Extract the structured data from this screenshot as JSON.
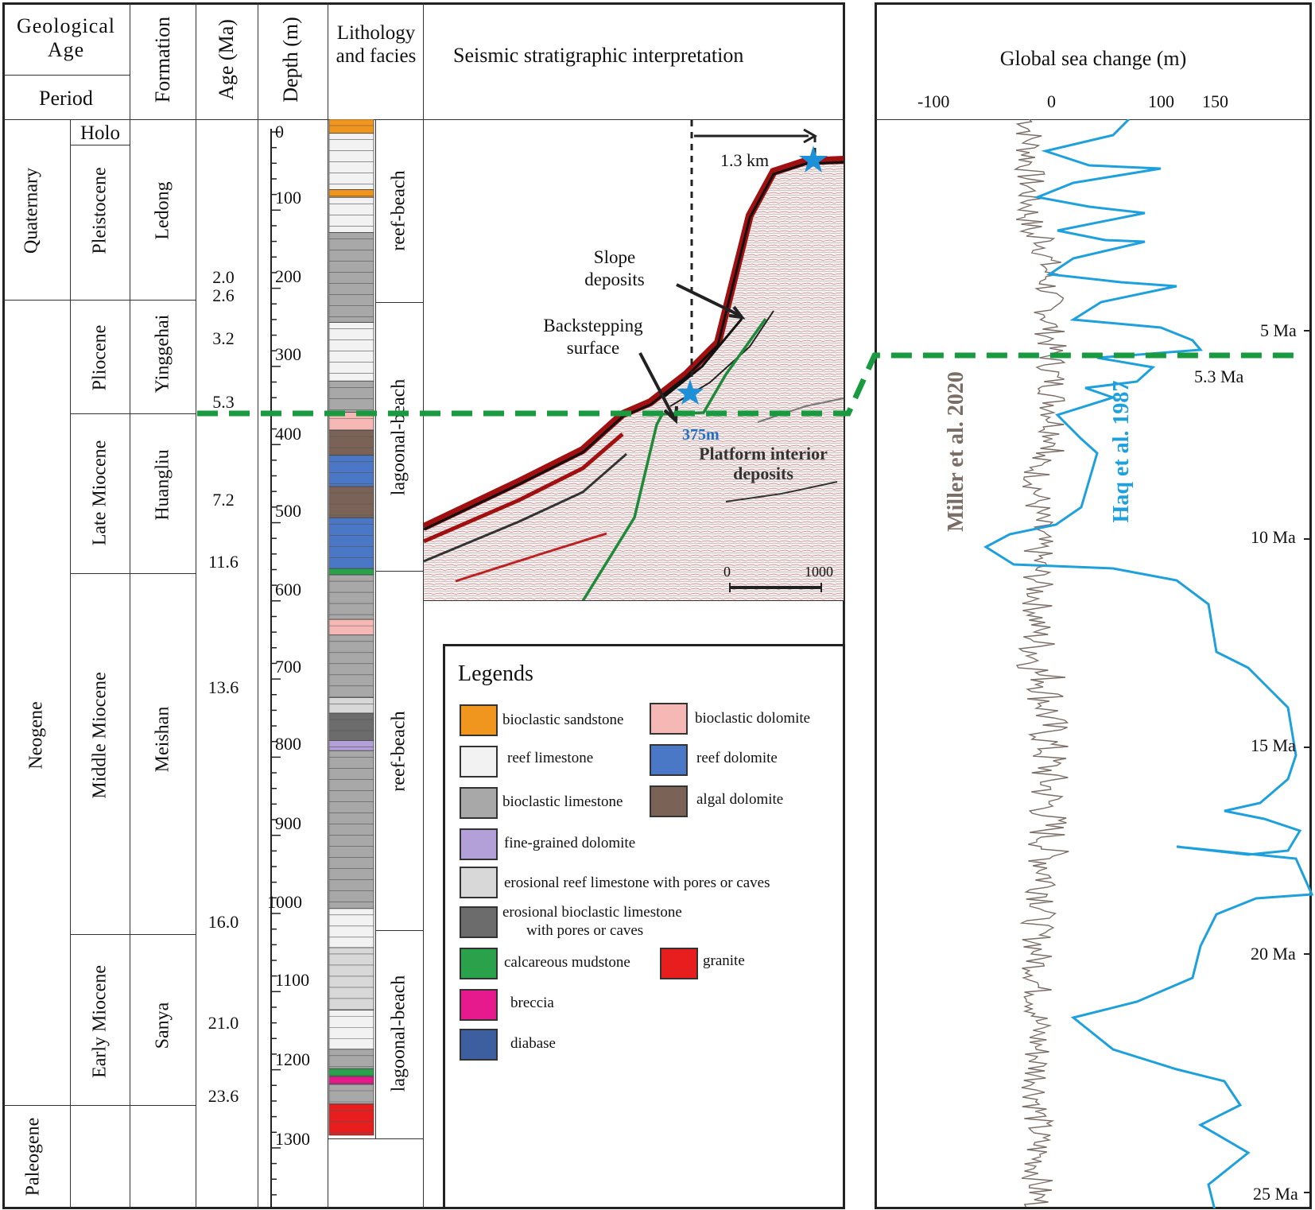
{
  "headers": {
    "geological_age": "Geological Age",
    "period": "Period",
    "formation": "Formation",
    "age_ma": "Age (Ma)",
    "depth_m": "Depth (m)",
    "lithology": "Lithology and facies",
    "seismic": "Seismic stratigraphic interpretation",
    "global_sea": "Global sea change (m)"
  },
  "periods": [
    "Quaternary",
    "Neogene",
    "Paleogene"
  ],
  "epochs": [
    "Holo",
    "Pleistocene",
    "Pliocene",
    "Late Miocene",
    "Middle Miocene",
    "Early Miocene"
  ],
  "formations": [
    "Ledong",
    "Yinggehai",
    "Huangliu",
    "Meishan",
    "Sanya"
  ],
  "ages": [
    "2.0",
    "2.6",
    "3.2",
    "5.3",
    "7.2",
    "11.6",
    "13.6",
    "16.0",
    "21.0",
    "23.6"
  ],
  "depths": [
    "0",
    "100",
    "200",
    "300",
    "400",
    "500",
    "600",
    "700",
    "800",
    "900",
    "1000",
    "1100",
    "1200",
    "1300"
  ],
  "facies": [
    "reef-beach",
    "lagoonal-beach",
    "reef-beach",
    "lagoonal-beach"
  ],
  "seismic": {
    "distance": "1.3 km",
    "slope": "Slope deposits",
    "backstep": "Backstepping surface",
    "depth_marker": "375m",
    "platform": "Platform interior deposits",
    "scale_0": "0",
    "scale_end": "1000"
  },
  "legend": {
    "title": "Legends",
    "items": [
      {
        "label": "bioclastic sandstone",
        "color": "#f0951e"
      },
      {
        "label": "bioclastic dolomite",
        "color": "#f6b8b4"
      },
      {
        "label": "reef limestone",
        "color": "#f2f2f2"
      },
      {
        "label": "reef dolomite",
        "color": "#4a78c6"
      },
      {
        "label": "bioclastic limestone",
        "color": "#a8a8a8"
      },
      {
        "label": "algal dolomite",
        "color": "#7b6256"
      },
      {
        "label": "fine-grained dolomite",
        "color": "#b4a0d8"
      },
      {
        "label": "erosional reef limestone with pores or caves",
        "color": "#d8d8d8"
      },
      {
        "label": "erosional bioclastic limestone",
        "label2": "with pores or caves",
        "color": "#6c6c6c"
      },
      {
        "label": "calcareous mudstone",
        "color": "#2aa14b"
      },
      {
        "label": "granite",
        "color": "#e81e1e"
      },
      {
        "label": "breccia",
        "color": "#e61a8c"
      },
      {
        "label": "diabase",
        "color": "#3d5f9f"
      }
    ]
  },
  "sea": {
    "ticks": [
      "-100",
      "0",
      "100",
      "150"
    ],
    "age_labels": [
      "5 Ma",
      "10 Ma",
      "15 Ma",
      "20 Ma",
      "25 Ma"
    ],
    "marker": "5.3 Ma",
    "miller": "Miller et al. 2020",
    "haq": "Haq et al. 1987",
    "miller_color": "#7a6d66",
    "haq_color": "#1ea0dc",
    "marker_color": "#1a9a40"
  }
}
